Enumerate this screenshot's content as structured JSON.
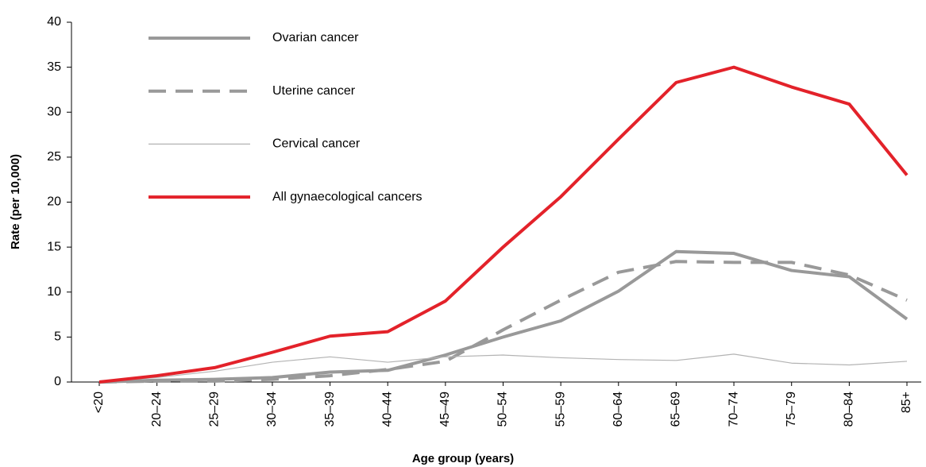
{
  "chart_data": {
    "type": "line",
    "y_label": "Rate (per 10,000)",
    "x_label": "Age group (years)",
    "categories": [
      "<20",
      "20–24",
      "25–29",
      "30–34",
      "35–39",
      "40–44",
      "45–49",
      "50–54",
      "55–59",
      "60–64",
      "65–69",
      "70–74",
      "75–79",
      "80–84",
      "85+"
    ],
    "series": [
      {
        "name": "Ovarian cancer",
        "color": "#999999",
        "style": "solid",
        "values": [
          0,
          0.2,
          0.3,
          0.5,
          1.1,
          1.3,
          3.0,
          5.0,
          6.8,
          10.1,
          14.5,
          14.3,
          12.4,
          11.7,
          7.0
        ]
      },
      {
        "name": "Uterine cancer",
        "color": "#999999",
        "style": "dashed",
        "values": [
          0,
          0.1,
          0.1,
          0.3,
          0.7,
          1.4,
          2.3,
          5.8,
          9.1,
          12.2,
          13.4,
          13.3,
          13.3,
          11.9,
          9.1
        ]
      },
      {
        "name": "Cervical cancer",
        "color": "#b3b3b3",
        "style": "thin",
        "values": [
          0,
          0.5,
          1.2,
          2.2,
          2.8,
          2.2,
          2.8,
          3.0,
          2.7,
          2.5,
          2.4,
          3.1,
          2.1,
          1.9,
          2.3
        ]
      },
      {
        "name": "All gynaecological cancers",
        "color": "#e3222a",
        "style": "solid",
        "values": [
          0,
          0.7,
          1.6,
          3.3,
          5.1,
          5.6,
          9.0,
          15.0,
          20.6,
          27.0,
          33.3,
          35.0,
          32.8,
          30.9,
          23.0
        ]
      }
    ],
    "ylim": [
      0,
      40
    ],
    "yticks": [
      0,
      5,
      10,
      15,
      20,
      25,
      30,
      35,
      40
    ],
    "grid": false,
    "legend": "top-left"
  }
}
